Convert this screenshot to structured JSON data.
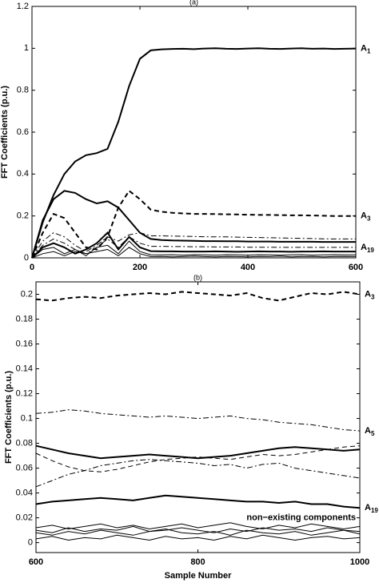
{
  "chart_data": [
    {
      "type": "line",
      "title": "(a)",
      "y_label": "FFT Coefficients (p.u.)",
      "xlim": [
        0,
        600
      ],
      "xticks": [
        0,
        200,
        400,
        600
      ],
      "ylim": [
        0,
        1.2
      ],
      "yticks": [
        0,
        0.2,
        0.4,
        0.6,
        0.8,
        1,
        1.2
      ],
      "x": [
        0,
        20,
        40,
        60,
        80,
        100,
        120,
        140,
        160,
        180,
        200,
        220,
        240,
        260,
        280,
        300,
        320,
        340,
        360,
        380,
        400,
        420,
        440,
        460,
        480,
        500,
        520,
        540,
        560,
        580,
        600
      ],
      "series": [
        {
          "color": "#000000",
          "dash": "solid",
          "weight": "bold",
          "label": "A",
          "label_sub": "1",
          "values": [
            0,
            0.17,
            0.3,
            0.4,
            0.46,
            0.49,
            0.5,
            0.52,
            0.65,
            0.82,
            0.95,
            0.99,
            0.995,
            0.997,
            0.998,
            0.996,
            0.999,
            1.0,
            0.998,
            0.997,
            0.999,
            1.0,
            0.998,
            0.997,
            0.999,
            1.0,
            0.998,
            0.999,
            0.997,
            0.998,
            0.999
          ]
        },
        {
          "color": "#000000",
          "dash": "dashed",
          "weight": "bold",
          "label": "A",
          "label_sub": "3",
          "values": [
            0,
            0.12,
            0.21,
            0.19,
            0.12,
            0.05,
            0.04,
            0.1,
            0.24,
            0.32,
            0.28,
            0.23,
            0.22,
            0.215,
            0.212,
            0.21,
            0.21,
            0.209,
            0.208,
            0.207,
            0.206,
            0.205,
            0.205,
            0.204,
            0.203,
            0.203,
            0.202,
            0.201,
            0.2,
            0.2,
            0.2
          ]
        },
        {
          "color": "#000000",
          "dash": "solid",
          "weight": "bold",
          "values": [
            0,
            0.18,
            0.28,
            0.32,
            0.31,
            0.28,
            0.26,
            0.27,
            0.24,
            0.18,
            0.12,
            0.09,
            0.085,
            0.083,
            0.082,
            0.081,
            0.08,
            0.08,
            0.079,
            0.079,
            0.078,
            0.078,
            0.078,
            0.077,
            0.077,
            0.077,
            0.077,
            0.076,
            0.076,
            0.076,
            0.076
          ]
        },
        {
          "color": "#000000",
          "dash": "dashdot",
          "weight": "thin",
          "values": [
            0,
            0.08,
            0.12,
            0.1,
            0.06,
            0.03,
            0.06,
            0.1,
            0.08,
            0.11,
            0.12,
            0.105,
            0.105,
            0.104,
            0.103,
            0.102,
            0.101,
            0.1,
            0.1,
            0.099,
            0.098,
            0.097,
            0.096,
            0.095,
            0.094,
            0.093,
            0.092,
            0.091,
            0.09,
            0.09,
            0.09
          ]
        },
        {
          "color": "#000000",
          "dash": "dashdot",
          "weight": "thin",
          "label": "A",
          "label_sub": "19",
          "values": [
            0,
            0.06,
            0.09,
            0.07,
            0.04,
            0.02,
            0.05,
            0.09,
            0.05,
            0.1,
            0.07,
            0.055,
            0.055,
            0.054,
            0.054,
            0.053,
            0.053,
            0.052,
            0.052,
            0.052,
            0.051,
            0.051,
            0.051,
            0.05,
            0.05,
            0.05,
            0.05,
            0.05,
            0.05,
            0.05,
            0.05
          ]
        },
        {
          "color": "#000000",
          "dash": "solid",
          "weight": "bold",
          "values": [
            0,
            0.05,
            0.07,
            0.05,
            0.02,
            0.04,
            0.07,
            0.12,
            0.04,
            0.1,
            0.05,
            0.032,
            0.031,
            0.031,
            0.03,
            0.03,
            0.03,
            0.031,
            0.03,
            0.029,
            0.03,
            0.031,
            0.03,
            0.03,
            0.029,
            0.03,
            0.03,
            0.031,
            0.03,
            0.03,
            0.03
          ]
        },
        {
          "color": "#000000",
          "dash": "solid",
          "weight": "thin",
          "values": [
            0,
            0.04,
            0.05,
            0.02,
            0.04,
            0.01,
            0.05,
            0.06,
            0.02,
            0.08,
            0.03,
            0.015,
            0.014,
            0.015,
            0.013,
            0.015,
            0.014,
            0.013,
            0.015,
            0.014,
            0.013,
            0.015,
            0.014,
            0.013,
            0.014,
            0.015,
            0.013,
            0.014,
            0.015,
            0.014,
            0.014
          ]
        },
        {
          "color": "#000000",
          "dash": "solid",
          "weight": "thin",
          "values": [
            0,
            0.02,
            0.03,
            0.01,
            0.03,
            0.02,
            0.03,
            0.04,
            0.01,
            0.05,
            0.02,
            0.006,
            0.007,
            0.005,
            0.006,
            0.008,
            0.006,
            0.005,
            0.007,
            0.006,
            0.005,
            0.007,
            0.006,
            0.008,
            0.005,
            0.006,
            0.007,
            0.005,
            0.006,
            0.007,
            0.006
          ]
        }
      ]
    },
    {
      "type": "line",
      "title": "(b)",
      "y_label": "FFT Coefficients (p.u.)",
      "x_label": "Sample Number",
      "annotation": "non−existing components",
      "xlim": [
        600,
        1000
      ],
      "xticks": [
        600,
        800,
        1000
      ],
      "ylim": [
        -0.008,
        0.21
      ],
      "yticks": [
        0,
        0.02,
        0.04,
        0.06,
        0.08,
        0.1,
        0.12,
        0.14,
        0.16,
        0.18,
        0.2
      ],
      "x": [
        600,
        620,
        640,
        660,
        680,
        700,
        720,
        740,
        760,
        780,
        800,
        820,
        840,
        860,
        880,
        900,
        920,
        940,
        960,
        980,
        1000
      ],
      "series": [
        {
          "color": "#000000",
          "dash": "dashed",
          "weight": "bold",
          "label": "A",
          "label_sub": "3",
          "values": [
            0.196,
            0.195,
            0.197,
            0.198,
            0.197,
            0.199,
            0.2,
            0.201,
            0.2,
            0.202,
            0.201,
            0.2,
            0.199,
            0.201,
            0.197,
            0.195,
            0.198,
            0.201,
            0.2,
            0.202,
            0.2
          ]
        },
        {
          "color": "#000000",
          "dash": "dashdot",
          "weight": "thin",
          "label": "A",
          "label_sub": "5",
          "values": [
            0.104,
            0.105,
            0.107,
            0.106,
            0.104,
            0.103,
            0.102,
            0.101,
            0.102,
            0.101,
            0.1,
            0.101,
            0.102,
            0.1,
            0.099,
            0.097,
            0.096,
            0.095,
            0.093,
            0.091,
            0.09
          ]
        },
        {
          "color": "#000000",
          "dash": "solid",
          "weight": "bold",
          "values": [
            0.078,
            0.075,
            0.072,
            0.07,
            0.068,
            0.069,
            0.07,
            0.071,
            0.07,
            0.069,
            0.068,
            0.069,
            0.07,
            0.072,
            0.074,
            0.076,
            0.077,
            0.076,
            0.075,
            0.074,
            0.075
          ]
        },
        {
          "color": "#000000",
          "dash": "dashed",
          "weight": "thin",
          "values": [
            0.072,
            0.066,
            0.061,
            0.058,
            0.057,
            0.059,
            0.062,
            0.065,
            0.067,
            0.068,
            0.069,
            0.068,
            0.067,
            0.069,
            0.071,
            0.07,
            0.071,
            0.073,
            0.075,
            0.077,
            0.078
          ]
        },
        {
          "color": "#000000",
          "dash": "dashdot",
          "weight": "thin",
          "values": [
            0.045,
            0.05,
            0.055,
            0.058,
            0.062,
            0.064,
            0.066,
            0.067,
            0.066,
            0.065,
            0.064,
            0.062,
            0.063,
            0.06,
            0.063,
            0.064,
            0.06,
            0.058,
            0.056,
            0.054,
            0.052
          ]
        },
        {
          "color": "#000000",
          "dash": "solid",
          "weight": "bold",
          "label": "A",
          "label_sub": "19",
          "values": [
            0.031,
            0.033,
            0.034,
            0.035,
            0.036,
            0.035,
            0.034,
            0.036,
            0.038,
            0.037,
            0.036,
            0.035,
            0.034,
            0.033,
            0.033,
            0.032,
            0.033,
            0.031,
            0.031,
            0.029,
            0.028
          ]
        },
        {
          "color": "#000000",
          "dash": "solid",
          "weight": "thin",
          "values": [
            0.012,
            0.014,
            0.011,
            0.013,
            0.015,
            0.012,
            0.014,
            0.011,
            0.013,
            0.015,
            0.012,
            0.014,
            0.016,
            0.013,
            0.011,
            0.014,
            0.012,
            0.015,
            0.013,
            0.011,
            0.013
          ]
        },
        {
          "color": "#000000",
          "dash": "solid",
          "weight": "thin",
          "values": [
            0.008,
            0.006,
            0.009,
            0.007,
            0.01,
            0.008,
            0.006,
            0.009,
            0.011,
            0.008,
            0.007,
            0.009,
            0.006,
            0.01,
            0.008,
            0.007,
            0.009,
            0.006,
            0.008,
            0.01,
            0.007
          ]
        },
        {
          "color": "#000000",
          "dash": "solid",
          "weight": "thin",
          "values": [
            0.003,
            0.005,
            0.002,
            0.004,
            0.003,
            0.006,
            0.004,
            0.002,
            0.005,
            0.003,
            0.004,
            0.002,
            0.005,
            0.003,
            0.006,
            0.004,
            0.002,
            0.004,
            0.005,
            0.003,
            0.004
          ]
        },
        {
          "color": "#000000",
          "dash": "solid",
          "weight": "thin",
          "values": [
            0.01,
            0.008,
            0.012,
            0.009,
            0.011,
            0.01,
            0.013,
            0.009,
            0.01,
            0.012,
            0.01,
            0.008,
            0.011,
            0.009,
            0.012,
            0.01,
            0.011,
            0.009,
            0.012,
            0.01,
            0.009
          ]
        }
      ]
    }
  ]
}
